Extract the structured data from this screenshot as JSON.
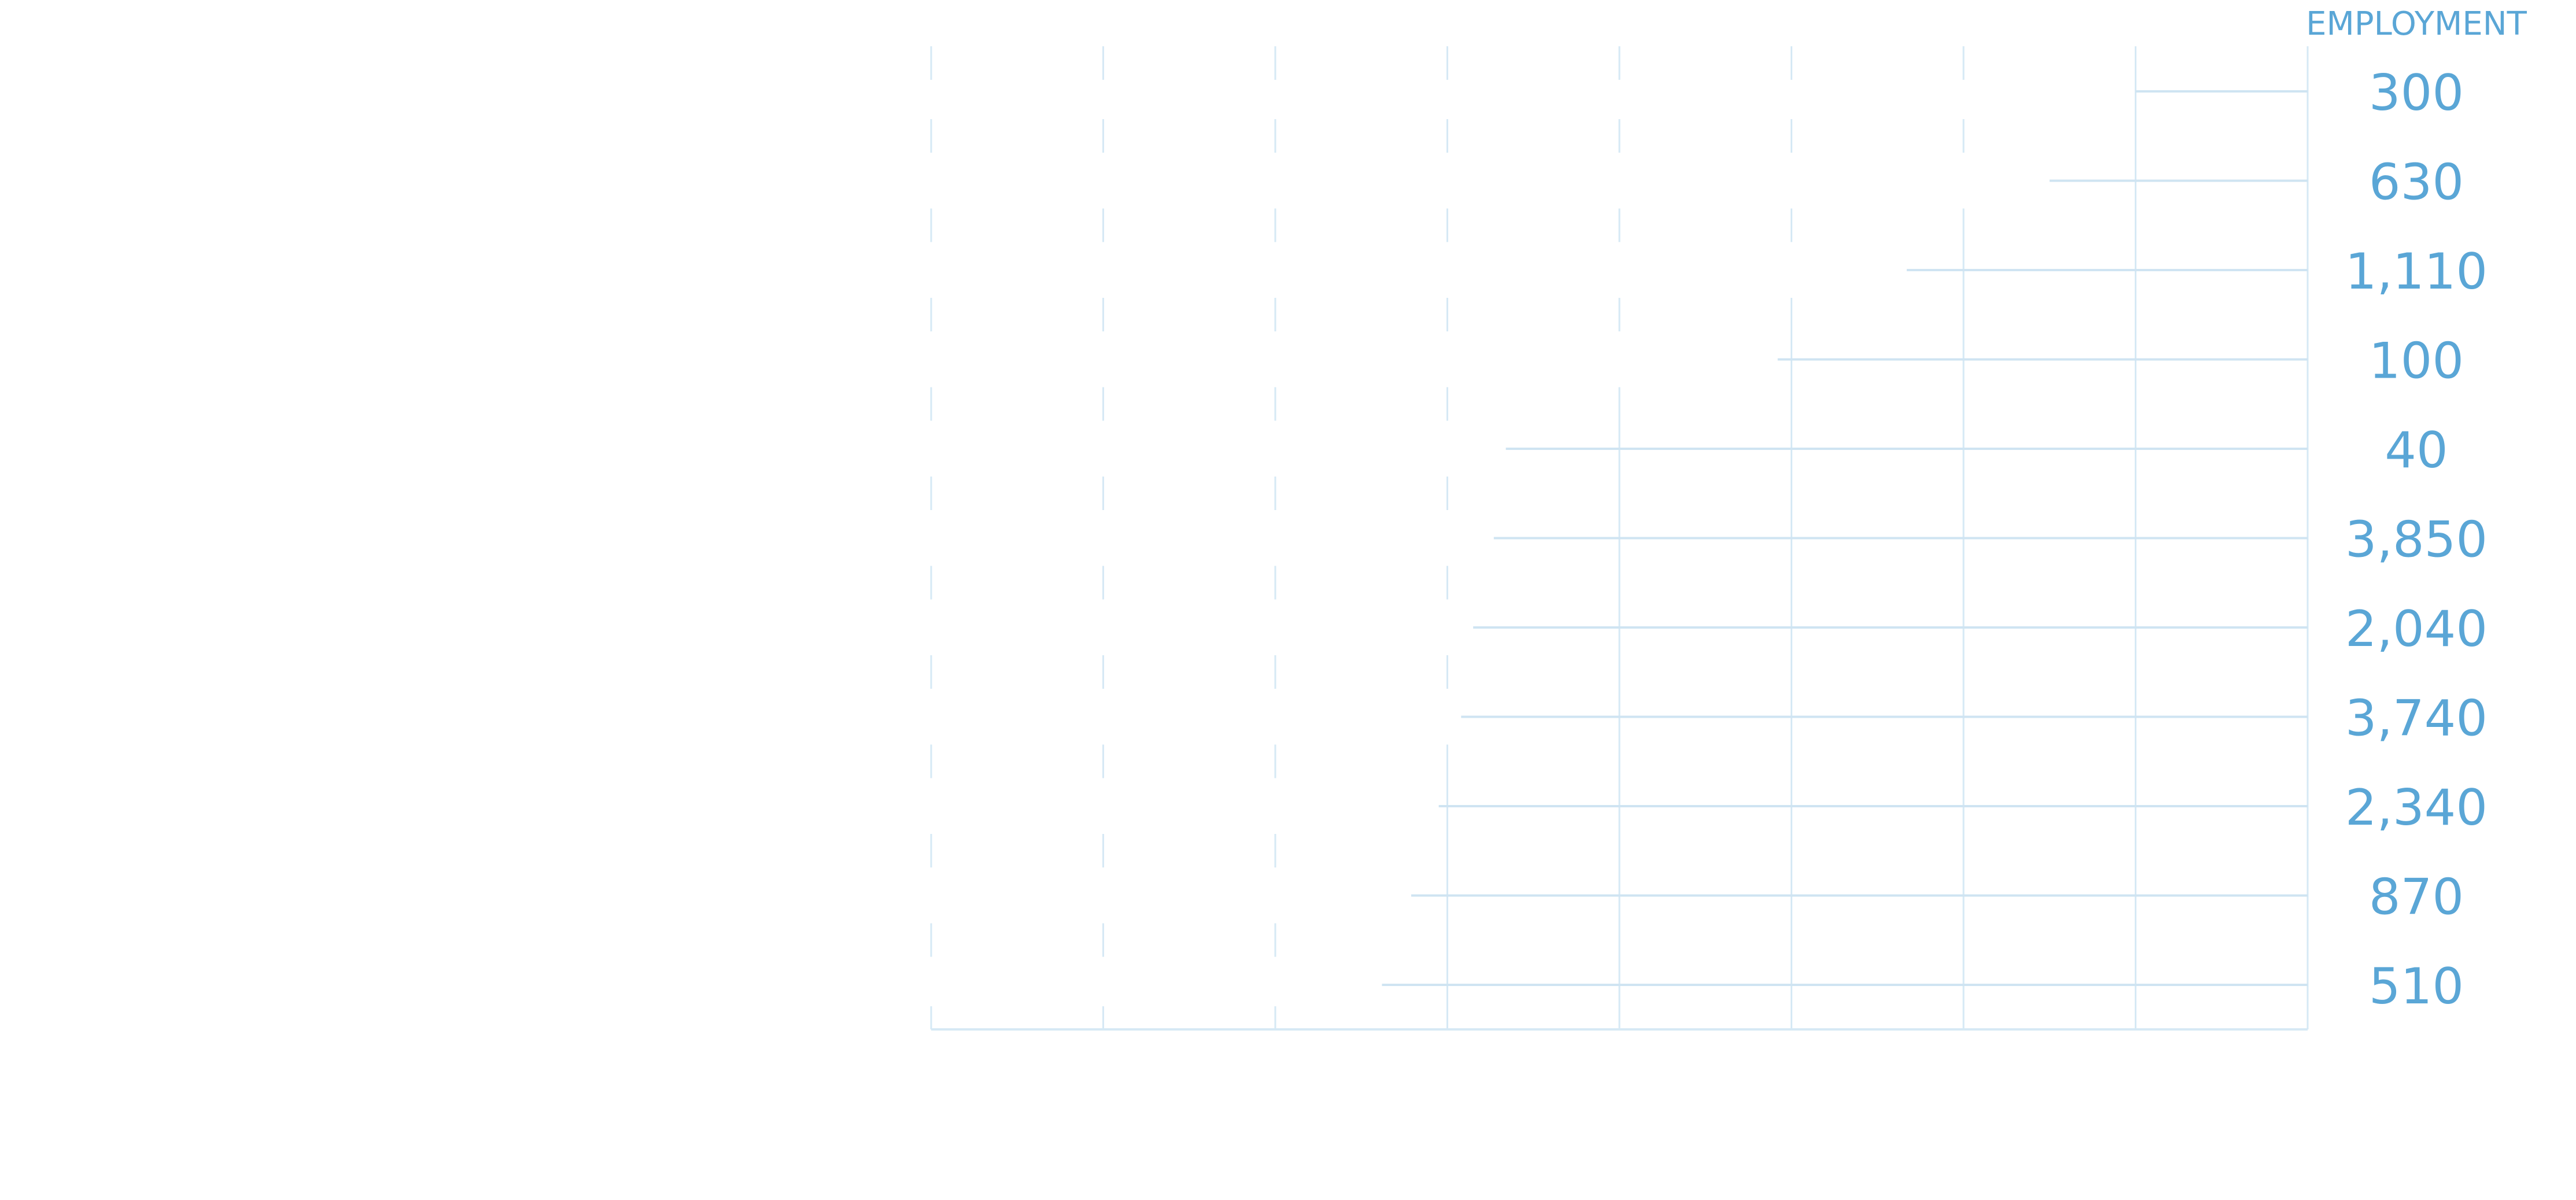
{
  "chart_data": {
    "type": "bar",
    "orientation": "horizontal",
    "column_header": "EMPLOYMENT",
    "rows": [
      {
        "employment": "300",
        "bar_start": 7.0
      },
      {
        "employment": "630",
        "bar_start": 6.5
      },
      {
        "employment": "1,110",
        "bar_start": 5.67
      },
      {
        "employment": "100",
        "bar_start": 4.92
      },
      {
        "employment": "40",
        "bar_start": 3.34
      },
      {
        "employment": "3,850",
        "bar_start": 3.27
      },
      {
        "employment": "2,040",
        "bar_start": 3.15
      },
      {
        "employment": "3,740",
        "bar_start": 3.08
      },
      {
        "employment": "2,340",
        "bar_start": 2.95
      },
      {
        "employment": "870",
        "bar_start": 2.79
      },
      {
        "employment": "510",
        "bar_start": 2.62
      }
    ],
    "xlim": [
      0,
      8
    ],
    "grid": true,
    "colors": {
      "grid": "#d6e9f5",
      "bar_line": "#cfe4f2",
      "text": "#5aa6d6"
    }
  }
}
